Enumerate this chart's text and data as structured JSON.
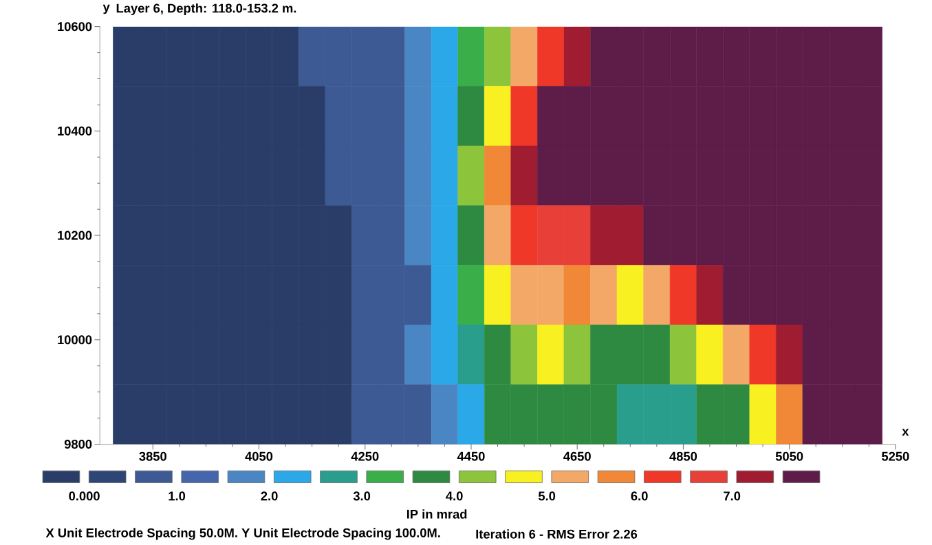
{
  "chart_data": {
    "type": "heatmap",
    "title": "Layer 6, Depth: 118.0-153.2 m.",
    "xlabel": "x",
    "ylabel": "y",
    "clabel": "IP in mrad",
    "x": [
      3800,
      3850,
      3900,
      3950,
      4000,
      4050,
      4100,
      4150,
      4200,
      4250,
      4300,
      4350,
      4400,
      4450,
      4500,
      4550,
      4600,
      4650,
      4700,
      4750,
      4800,
      4850,
      4900,
      4950,
      5000,
      5050,
      5100,
      5150,
      5200
    ],
    "cells": [
      [
        -0.25,
        -0.25,
        -0.25,
        -0.25,
        -0.25,
        -0.25,
        -0.25,
        0.75,
        0.75,
        0.75,
        0.75,
        1.75,
        2.25,
        3.25,
        4.25,
        5.25,
        6.25,
        7.25,
        7.75,
        7.75,
        7.75,
        7.75,
        7.75,
        7.75,
        7.75,
        7.75,
        7.75,
        7.75,
        7.75
      ],
      [
        -0.25,
        -0.25,
        -0.25,
        -0.25,
        -0.25,
        -0.25,
        -0.25,
        -0.25,
        0.75,
        0.75,
        0.75,
        1.75,
        2.25,
        3.75,
        4.75,
        6.25,
        7.75,
        7.75,
        7.75,
        7.75,
        7.75,
        7.75,
        7.75,
        7.75,
        7.75,
        7.75,
        7.75,
        7.75,
        7.75
      ],
      [
        -0.25,
        -0.25,
        -0.25,
        -0.25,
        -0.25,
        -0.25,
        -0.25,
        -0.25,
        0.75,
        0.75,
        0.75,
        1.75,
        2.25,
        4.25,
        5.75,
        7.25,
        7.75,
        7.75,
        7.75,
        7.75,
        7.75,
        7.75,
        7.75,
        7.75,
        7.75,
        7.75,
        7.75,
        7.75,
        7.75
      ],
      [
        -0.25,
        -0.25,
        -0.25,
        -0.25,
        -0.25,
        -0.25,
        -0.25,
        -0.25,
        -0.25,
        0.75,
        0.75,
        1.75,
        2.25,
        3.75,
        5.25,
        6.25,
        6.75,
        6.75,
        7.25,
        7.25,
        7.75,
        7.75,
        7.75,
        7.75,
        7.75,
        7.75,
        7.75,
        7.75,
        7.75
      ],
      [
        -0.25,
        -0.25,
        -0.25,
        -0.25,
        -0.25,
        -0.25,
        -0.25,
        -0.25,
        -0.25,
        0.75,
        0.75,
        0.75,
        2.25,
        3.25,
        4.75,
        5.25,
        5.25,
        5.75,
        5.25,
        4.75,
        5.25,
        6.25,
        7.25,
        7.75,
        7.75,
        7.75,
        7.75,
        7.75,
        7.75
      ],
      [
        -0.25,
        -0.25,
        -0.25,
        -0.25,
        -0.25,
        -0.25,
        -0.25,
        -0.25,
        -0.25,
        0.75,
        0.75,
        1.75,
        2.25,
        2.75,
        3.75,
        4.25,
        4.75,
        4.25,
        3.75,
        3.75,
        3.75,
        4.25,
        4.75,
        5.25,
        6.25,
        7.25,
        7.75,
        7.75,
        7.75
      ],
      [
        -0.25,
        -0.25,
        -0.25,
        -0.25,
        -0.25,
        -0.25,
        -0.25,
        -0.25,
        -0.25,
        0.75,
        0.75,
        0.75,
        1.75,
        2.25,
        3.75,
        3.75,
        3.75,
        3.75,
        3.75,
        2.75,
        2.75,
        2.75,
        3.75,
        3.75,
        4.75,
        5.75,
        7.75,
        7.75,
        7.75
      ]
    ],
    "colors": [
      "#2a3c68",
      "#2e4575",
      "#3d5a95",
      "#4566ad",
      "#4a86c4",
      "#2aa8e8",
      "#2a9e8c",
      "#3aae48",
      "#2e8a40",
      "#8cc43c",
      "#f8f020",
      "#f4a868",
      "#f08838",
      "#f03828",
      "#e84038",
      "#a01c30",
      "#5e1c48"
    ],
    "clim": [
      -0.5,
      8
    ],
    "cticks": [
      {
        "value": 0,
        "label": "0.000"
      },
      {
        "value": 1,
        "label": "1.0"
      },
      {
        "value": 2,
        "label": "2.0"
      },
      {
        "value": 3,
        "label": "3.0"
      },
      {
        "value": 4,
        "label": "4.0"
      },
      {
        "value": 5,
        "label": "5.0"
      },
      {
        "value": 6,
        "label": "6.0"
      },
      {
        "value": 7,
        "label": "7.0"
      }
    ],
    "xlim": [
      3750,
      5250
    ],
    "ylim": [
      9800,
      10600
    ],
    "xticks": [
      3850,
      4050,
      4250,
      4450,
      4650,
      4850,
      5050,
      5250
    ],
    "yticks": [
      9800,
      10000,
      10200,
      10400,
      10600
    ],
    "annotations": [
      "X Unit Electrode Spacing 50.0M.  Y Unit Electrode Spacing 100.0M.",
      "Iteration 6 - RMS Error 2.26"
    ]
  }
}
